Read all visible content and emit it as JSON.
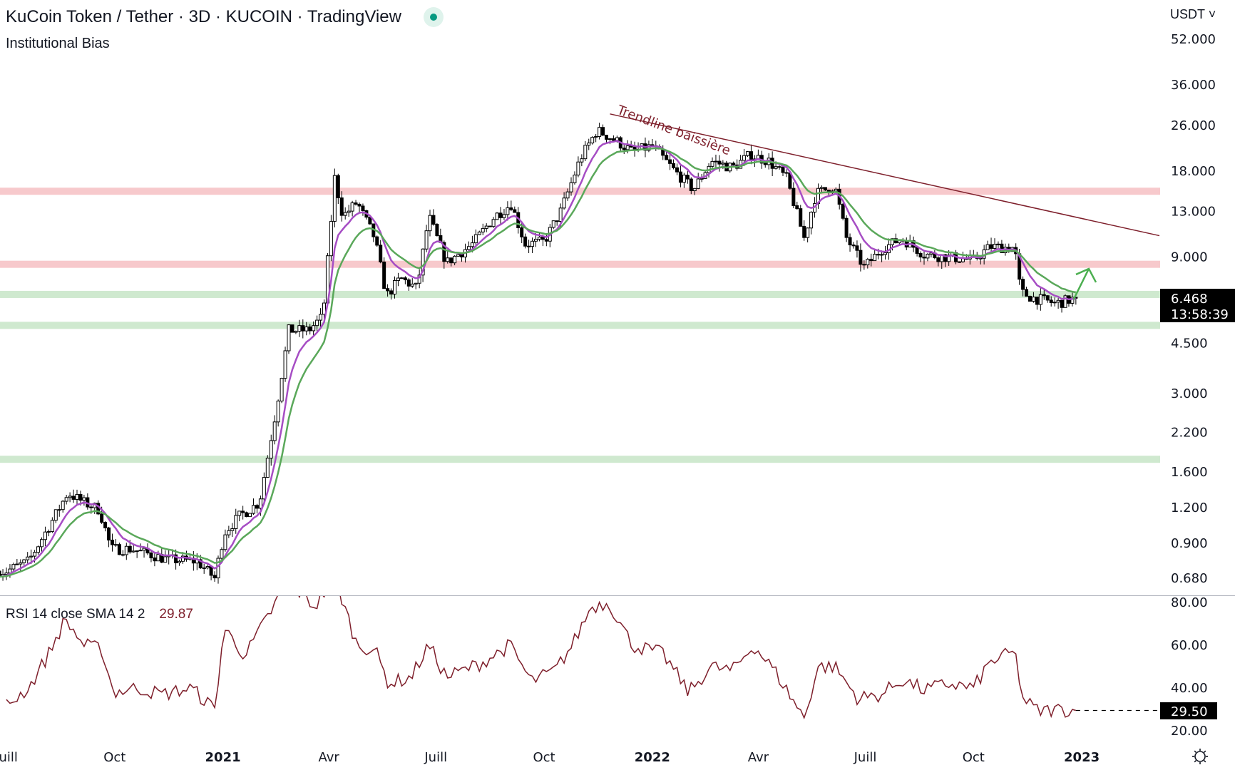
{
  "header": {
    "title": "KuCoin Token / Tether · 3D · KUCOIN · TradingView",
    "indicator": "Institutional Bias",
    "currency": "USDT",
    "status_color": "#089981"
  },
  "rsi_header": {
    "label": "RSI 14 close SMA 14 2",
    "value": "29.87"
  },
  "price_badge": {
    "price": "6.468",
    "countdown": "13:58:39"
  },
  "rsi_badge": "29.50",
  "chart_data": [
    {
      "type": "candlestick",
      "title": "KuCoin Token / Tether",
      "timeframe": "3D",
      "scale": "log",
      "y_ticks": [
        "52.000",
        "36.000",
        "26.000",
        "18.000",
        "13.000",
        "9.000",
        "4.500",
        "3.000",
        "2.200",
        "1.600",
        "1.200",
        "0.900",
        "0.680"
      ],
      "y_tick_values": [
        52,
        36,
        26,
        18,
        13,
        9,
        4.5,
        3,
        2.2,
        1.6,
        1.2,
        0.9,
        0.68
      ],
      "ylim": [
        0.6,
        60
      ],
      "x_ticks": [
        {
          "label": "Juill",
          "date": "2020-07-01"
        },
        {
          "label": "Oct",
          "date": "2020-10-01"
        },
        {
          "label": "2021",
          "date": "2021-01-01",
          "bold": true
        },
        {
          "label": "Avr",
          "date": "2021-04-01"
        },
        {
          "label": "Juill",
          "date": "2021-07-01"
        },
        {
          "label": "Oct",
          "date": "2021-10-01"
        },
        {
          "label": "2022",
          "date": "2022-01-01",
          "bold": true
        },
        {
          "label": "Avr",
          "date": "2022-04-01"
        },
        {
          "label": "Juill",
          "date": "2022-07-01"
        },
        {
          "label": "Oct",
          "date": "2022-10-01"
        },
        {
          "label": "2023",
          "date": "2023-01-01",
          "bold": true
        }
      ],
      "close_path": [
        [
          "2020-07-01",
          0.72
        ],
        [
          "2020-07-20",
          0.78
        ],
        [
          "2020-08-10",
          1.1
        ],
        [
          "2020-08-22",
          1.35
        ],
        [
          "2020-09-05",
          1.25
        ],
        [
          "2020-09-18",
          1.18
        ],
        [
          "2020-09-28",
          0.86
        ],
        [
          "2020-10-15",
          0.86
        ],
        [
          "2020-11-15",
          0.79
        ],
        [
          "2020-12-10",
          0.78
        ],
        [
          "2020-12-25",
          0.68
        ],
        [
          "2021-01-02",
          0.98
        ],
        [
          "2021-01-15",
          1.12
        ],
        [
          "2021-02-01",
          1.25
        ],
        [
          "2021-02-15",
          2.6
        ],
        [
          "2021-02-26",
          5.0
        ],
        [
          "2021-03-15",
          5.0
        ],
        [
          "2021-03-27",
          5.6
        ],
        [
          "2021-04-06",
          17
        ],
        [
          "2021-04-13",
          12.5
        ],
        [
          "2021-04-25",
          14
        ],
        [
          "2021-05-10",
          10.5
        ],
        [
          "2021-05-20",
          6.6
        ],
        [
          "2021-06-01",
          7.6
        ],
        [
          "2021-06-15",
          7.0
        ],
        [
          "2021-06-25",
          12.5
        ],
        [
          "2021-07-10",
          8.6
        ],
        [
          "2021-08-01",
          10
        ],
        [
          "2021-08-20",
          12.5
        ],
        [
          "2021-09-03",
          13.8
        ],
        [
          "2021-09-15",
          10
        ],
        [
          "2021-10-01",
          10.2
        ],
        [
          "2021-10-15",
          13
        ],
        [
          "2021-11-01",
          20
        ],
        [
          "2021-11-15",
          25
        ],
        [
          "2021-12-01",
          23
        ],
        [
          "2021-12-15",
          21
        ],
        [
          "2022-01-01",
          22
        ],
        [
          "2022-01-20",
          18
        ],
        [
          "2022-02-05",
          15.5
        ],
        [
          "2022-02-20",
          19.5
        ],
        [
          "2022-03-10",
          18.5
        ],
        [
          "2022-03-25",
          20.5
        ],
        [
          "2022-04-10",
          19.5
        ],
        [
          "2022-04-25",
          17
        ],
        [
          "2022-05-10",
          10.5
        ],
        [
          "2022-05-20",
          15
        ],
        [
          "2022-06-05",
          16
        ],
        [
          "2022-06-15",
          10.5
        ],
        [
          "2022-06-30",
          8.3
        ],
        [
          "2022-07-15",
          9.6
        ],
        [
          "2022-08-01",
          10.5
        ],
        [
          "2022-08-20",
          9.2
        ],
        [
          "2022-09-10",
          9
        ],
        [
          "2022-10-01",
          8.8
        ],
        [
          "2022-10-15",
          9.8
        ],
        [
          "2022-11-05",
          9.7
        ],
        [
          "2022-11-10",
          6.8
        ],
        [
          "2022-11-20",
          6.5
        ],
        [
          "2022-12-10",
          6.2
        ],
        [
          "2022-12-27",
          6.468
        ]
      ],
      "zones": [
        {
          "price": 15.3,
          "color": "#f7c9cc"
        },
        {
          "price": 8.5,
          "color": "#f7c9cc"
        },
        {
          "price": 6.67,
          "color": "#cfe9cf"
        },
        {
          "price": 5.2,
          "color": "#cfe9cf"
        },
        {
          "price": 1.77,
          "color": "#cfe9cf"
        }
      ],
      "trendline": {
        "label": "Trendline baissière",
        "from": [
          "2021-11-26",
          28.5
        ],
        "to": [
          "2023-03-08",
          10.7
        ],
        "color": "#7e1f2b"
      },
      "moving_averages": [
        {
          "color": "#a64dc4"
        },
        {
          "color": "#5aa85a"
        }
      ],
      "arrow": {
        "color": "#4caf50",
        "from": [
          "2022-12-25",
          6.4
        ],
        "to": [
          "2023-01-07",
          8.2
        ]
      },
      "candle_up": "#ffffff",
      "candle_down": "#000000"
    },
    {
      "type": "line",
      "title": "RSI 14 close SMA 14 2",
      "ylim": [
        15,
        85
      ],
      "y_ticks": [
        "80.00",
        "60.00",
        "40.00",
        "20.00"
      ],
      "y_tick_values": [
        80,
        60,
        40,
        20
      ],
      "color": "#7e1f2b",
      "path": [
        [
          "2020-07-01",
          32
        ],
        [
          "2020-07-20",
          40
        ],
        [
          "2020-08-05",
          55
        ],
        [
          "2020-08-20",
          72
        ],
        [
          "2020-09-05",
          60
        ],
        [
          "2020-09-20",
          58
        ],
        [
          "2020-09-30",
          38
        ],
        [
          "2020-10-20",
          40
        ],
        [
          "2020-11-10",
          37
        ],
        [
          "2020-12-05",
          40
        ],
        [
          "2020-12-25",
          30
        ],
        [
          "2021-01-02",
          68
        ],
        [
          "2021-01-20",
          55
        ],
        [
          "2021-02-10",
          75
        ],
        [
          "2021-02-25",
          90
        ],
        [
          "2021-03-20",
          78
        ],
        [
          "2021-04-06",
          92
        ],
        [
          "2021-04-25",
          60
        ],
        [
          "2021-05-10",
          58
        ],
        [
          "2021-05-22",
          42
        ],
        [
          "2021-06-10",
          45
        ],
        [
          "2021-06-25",
          60
        ],
        [
          "2021-07-10",
          45
        ],
        [
          "2021-08-10",
          52
        ],
        [
          "2021-09-02",
          60
        ],
        [
          "2021-09-20",
          43
        ],
        [
          "2021-10-10",
          48
        ],
        [
          "2021-10-25",
          60
        ],
        [
          "2021-11-10",
          78
        ],
        [
          "2021-11-25",
          80
        ],
        [
          "2021-12-15",
          60
        ],
        [
          "2022-01-10",
          56
        ],
        [
          "2022-02-01",
          38
        ],
        [
          "2022-02-20",
          50
        ],
        [
          "2022-03-10",
          48
        ],
        [
          "2022-03-28",
          60
        ],
        [
          "2022-04-15",
          48
        ],
        [
          "2022-05-10",
          26
        ],
        [
          "2022-05-22",
          50
        ],
        [
          "2022-06-05",
          50
        ],
        [
          "2022-06-25",
          35
        ],
        [
          "2022-07-15",
          37
        ],
        [
          "2022-08-01",
          44
        ],
        [
          "2022-08-20",
          39
        ],
        [
          "2022-09-10",
          42
        ],
        [
          "2022-10-01",
          40
        ],
        [
          "2022-10-15",
          52
        ],
        [
          "2022-11-05",
          57
        ],
        [
          "2022-11-12",
          35
        ],
        [
          "2022-11-25",
          29
        ],
        [
          "2022-12-10",
          30
        ],
        [
          "2022-12-27",
          29.5
        ]
      ]
    }
  ]
}
